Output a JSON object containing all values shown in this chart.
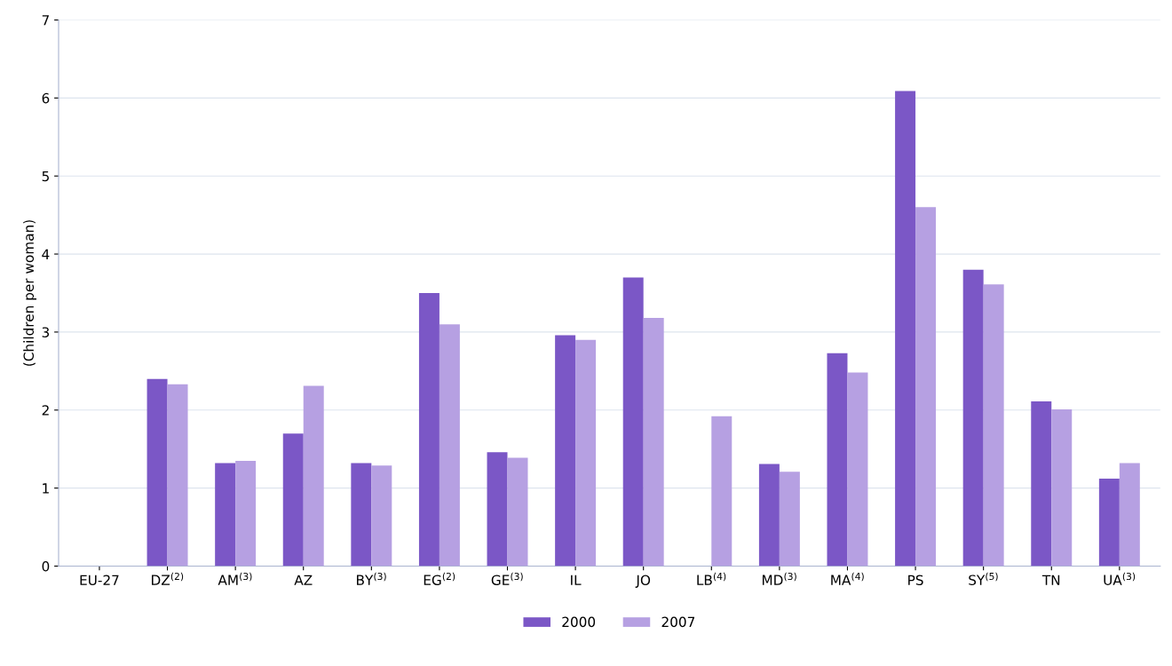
{
  "chart_data": {
    "type": "bar",
    "ylabel": "(Children per woman)",
    "categories": [
      "EU-27",
      "DZ$^{(2)}$",
      "AM$^{(3)}$",
      "AZ",
      "BY$^{(3)}$",
      "EG$^{(2)}$",
      "GE$^{(3)}$",
      "IL",
      "JO",
      "LB$^{(4)}$",
      "MD$^{(3)}$",
      "MA$^{(4)}$",
      "PS",
      "SY$^{(5)}$",
      "TN",
      "UA$^{(3)}$"
    ],
    "series": [
      {
        "name": "2000",
        "color": "#7b57c6",
        "values": [
          null,
          2.4,
          1.32,
          1.7,
          1.32,
          3.5,
          1.46,
          2.96,
          3.7,
          null,
          1.31,
          2.73,
          6.09,
          3.8,
          2.11,
          1.12
        ]
      },
      {
        "name": "2007",
        "color": "#b6a0e2",
        "values": [
          null,
          2.33,
          1.35,
          2.31,
          1.29,
          3.1,
          1.39,
          2.9,
          3.18,
          1.92,
          1.21,
          2.48,
          4.6,
          3.61,
          2.01,
          1.32
        ]
      }
    ],
    "ylim": [
      0,
      7
    ],
    "yticks": [
      0,
      1,
      2,
      3,
      4,
      5,
      6,
      7
    ],
    "grid": "y",
    "legend": "bottom"
  }
}
